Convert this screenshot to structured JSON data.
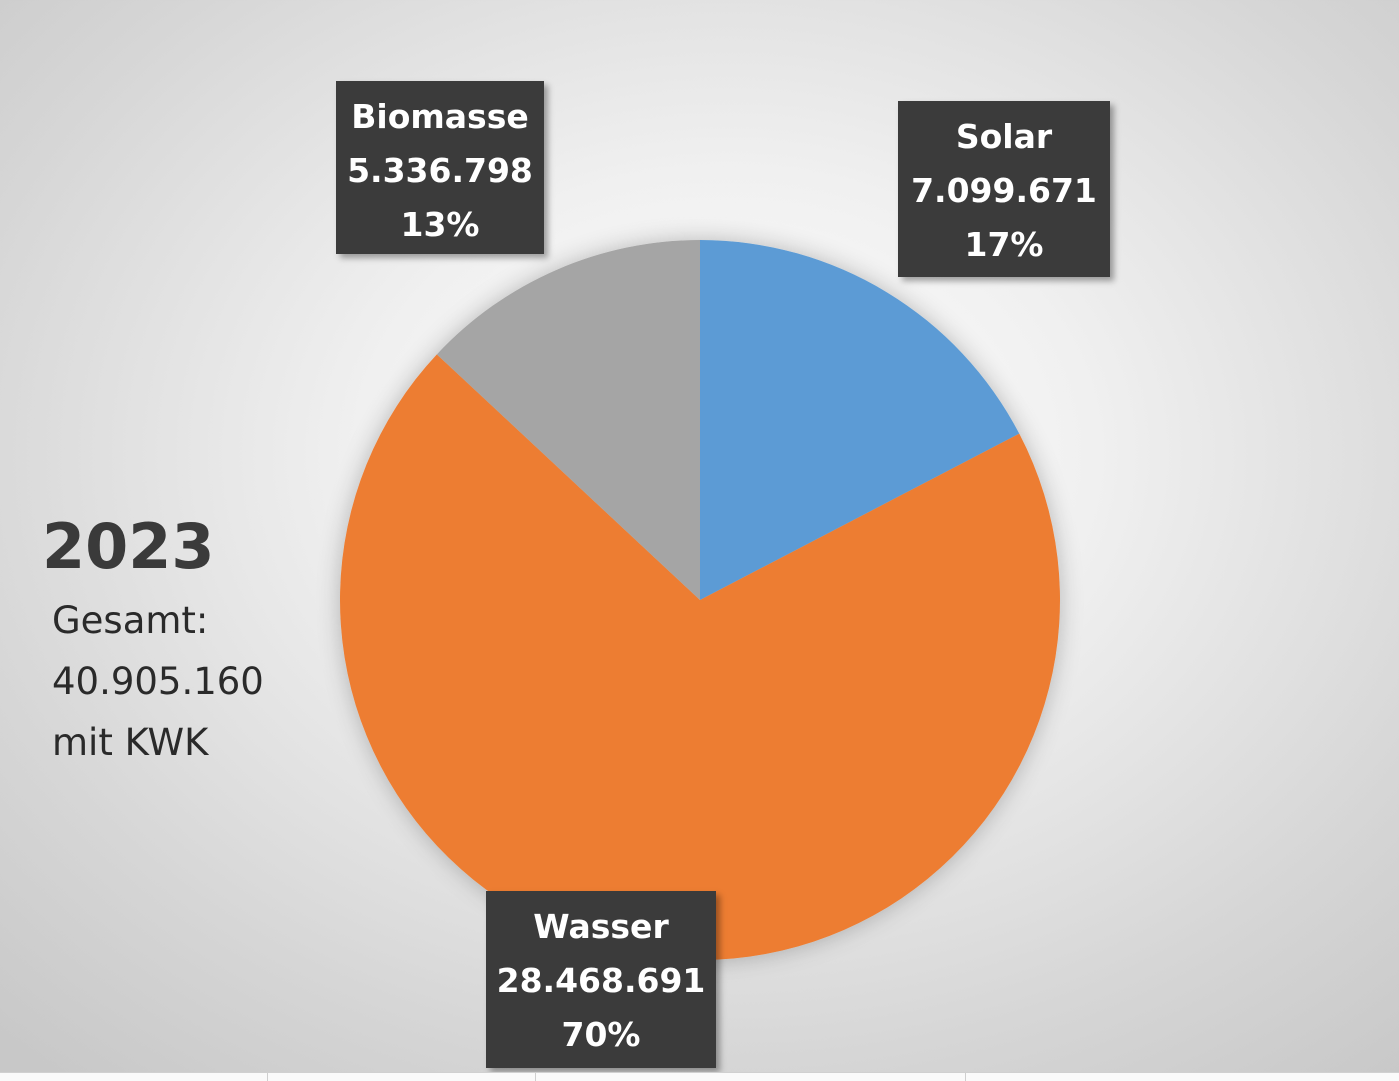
{
  "chart_data": {
    "type": "pie",
    "title": "2023",
    "subtitle": [
      "Gesamt:",
      "40.905.160",
      "mit KWK"
    ],
    "start_angle_deg": 0,
    "direction": "clockwise",
    "legend": "none",
    "slices": [
      {
        "name": "Solar",
        "value_label": "7.099.671",
        "value": 7099671,
        "percent_label": "17%",
        "color": "#5b9bd5"
      },
      {
        "name": "Wasser",
        "value_label": "28.468.691",
        "value": 28468691,
        "percent_label": "70%",
        "color": "#ed7d31"
      },
      {
        "name": "Biomasse",
        "value_label": "5.336.798",
        "value": 5336798,
        "percent_label": "13%",
        "color": "#a5a5a5"
      }
    ]
  }
}
